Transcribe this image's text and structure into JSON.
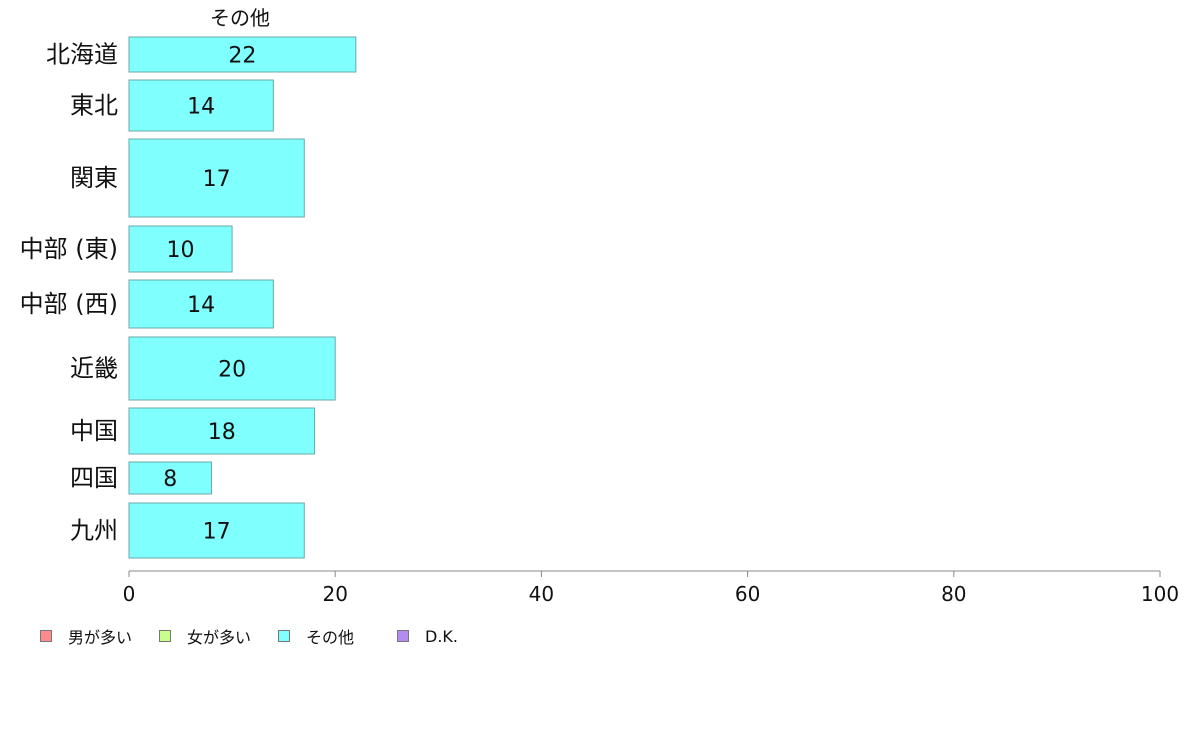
{
  "chart_data": {
    "type": "bar",
    "orientation": "horizontal",
    "categories": [
      "北海道",
      "東北",
      "関東",
      "中部 (東)",
      "中部 (西)",
      "近畿",
      "中国",
      "四国",
      "九州"
    ],
    "series": [
      {
        "name": "その他",
        "color": "#80ffff",
        "values": [
          22,
          14,
          17,
          10,
          14,
          20,
          18,
          8,
          17
        ]
      }
    ],
    "xlim": [
      0,
      100
    ],
    "xticks": [
      "0",
      "20",
      "40",
      "60",
      "80",
      "100"
    ],
    "grid": false,
    "legend_position": "bottom-left",
    "legend": [
      {
        "label": "男が多い",
        "color": "#ff8c8c"
      },
      {
        "label": "女が多い",
        "color": "#c8ff8c"
      },
      {
        "label": "その他",
        "color": "#80ffff"
      },
      {
        "label": "D.K.",
        "color": "#b48cf0"
      }
    ]
  }
}
